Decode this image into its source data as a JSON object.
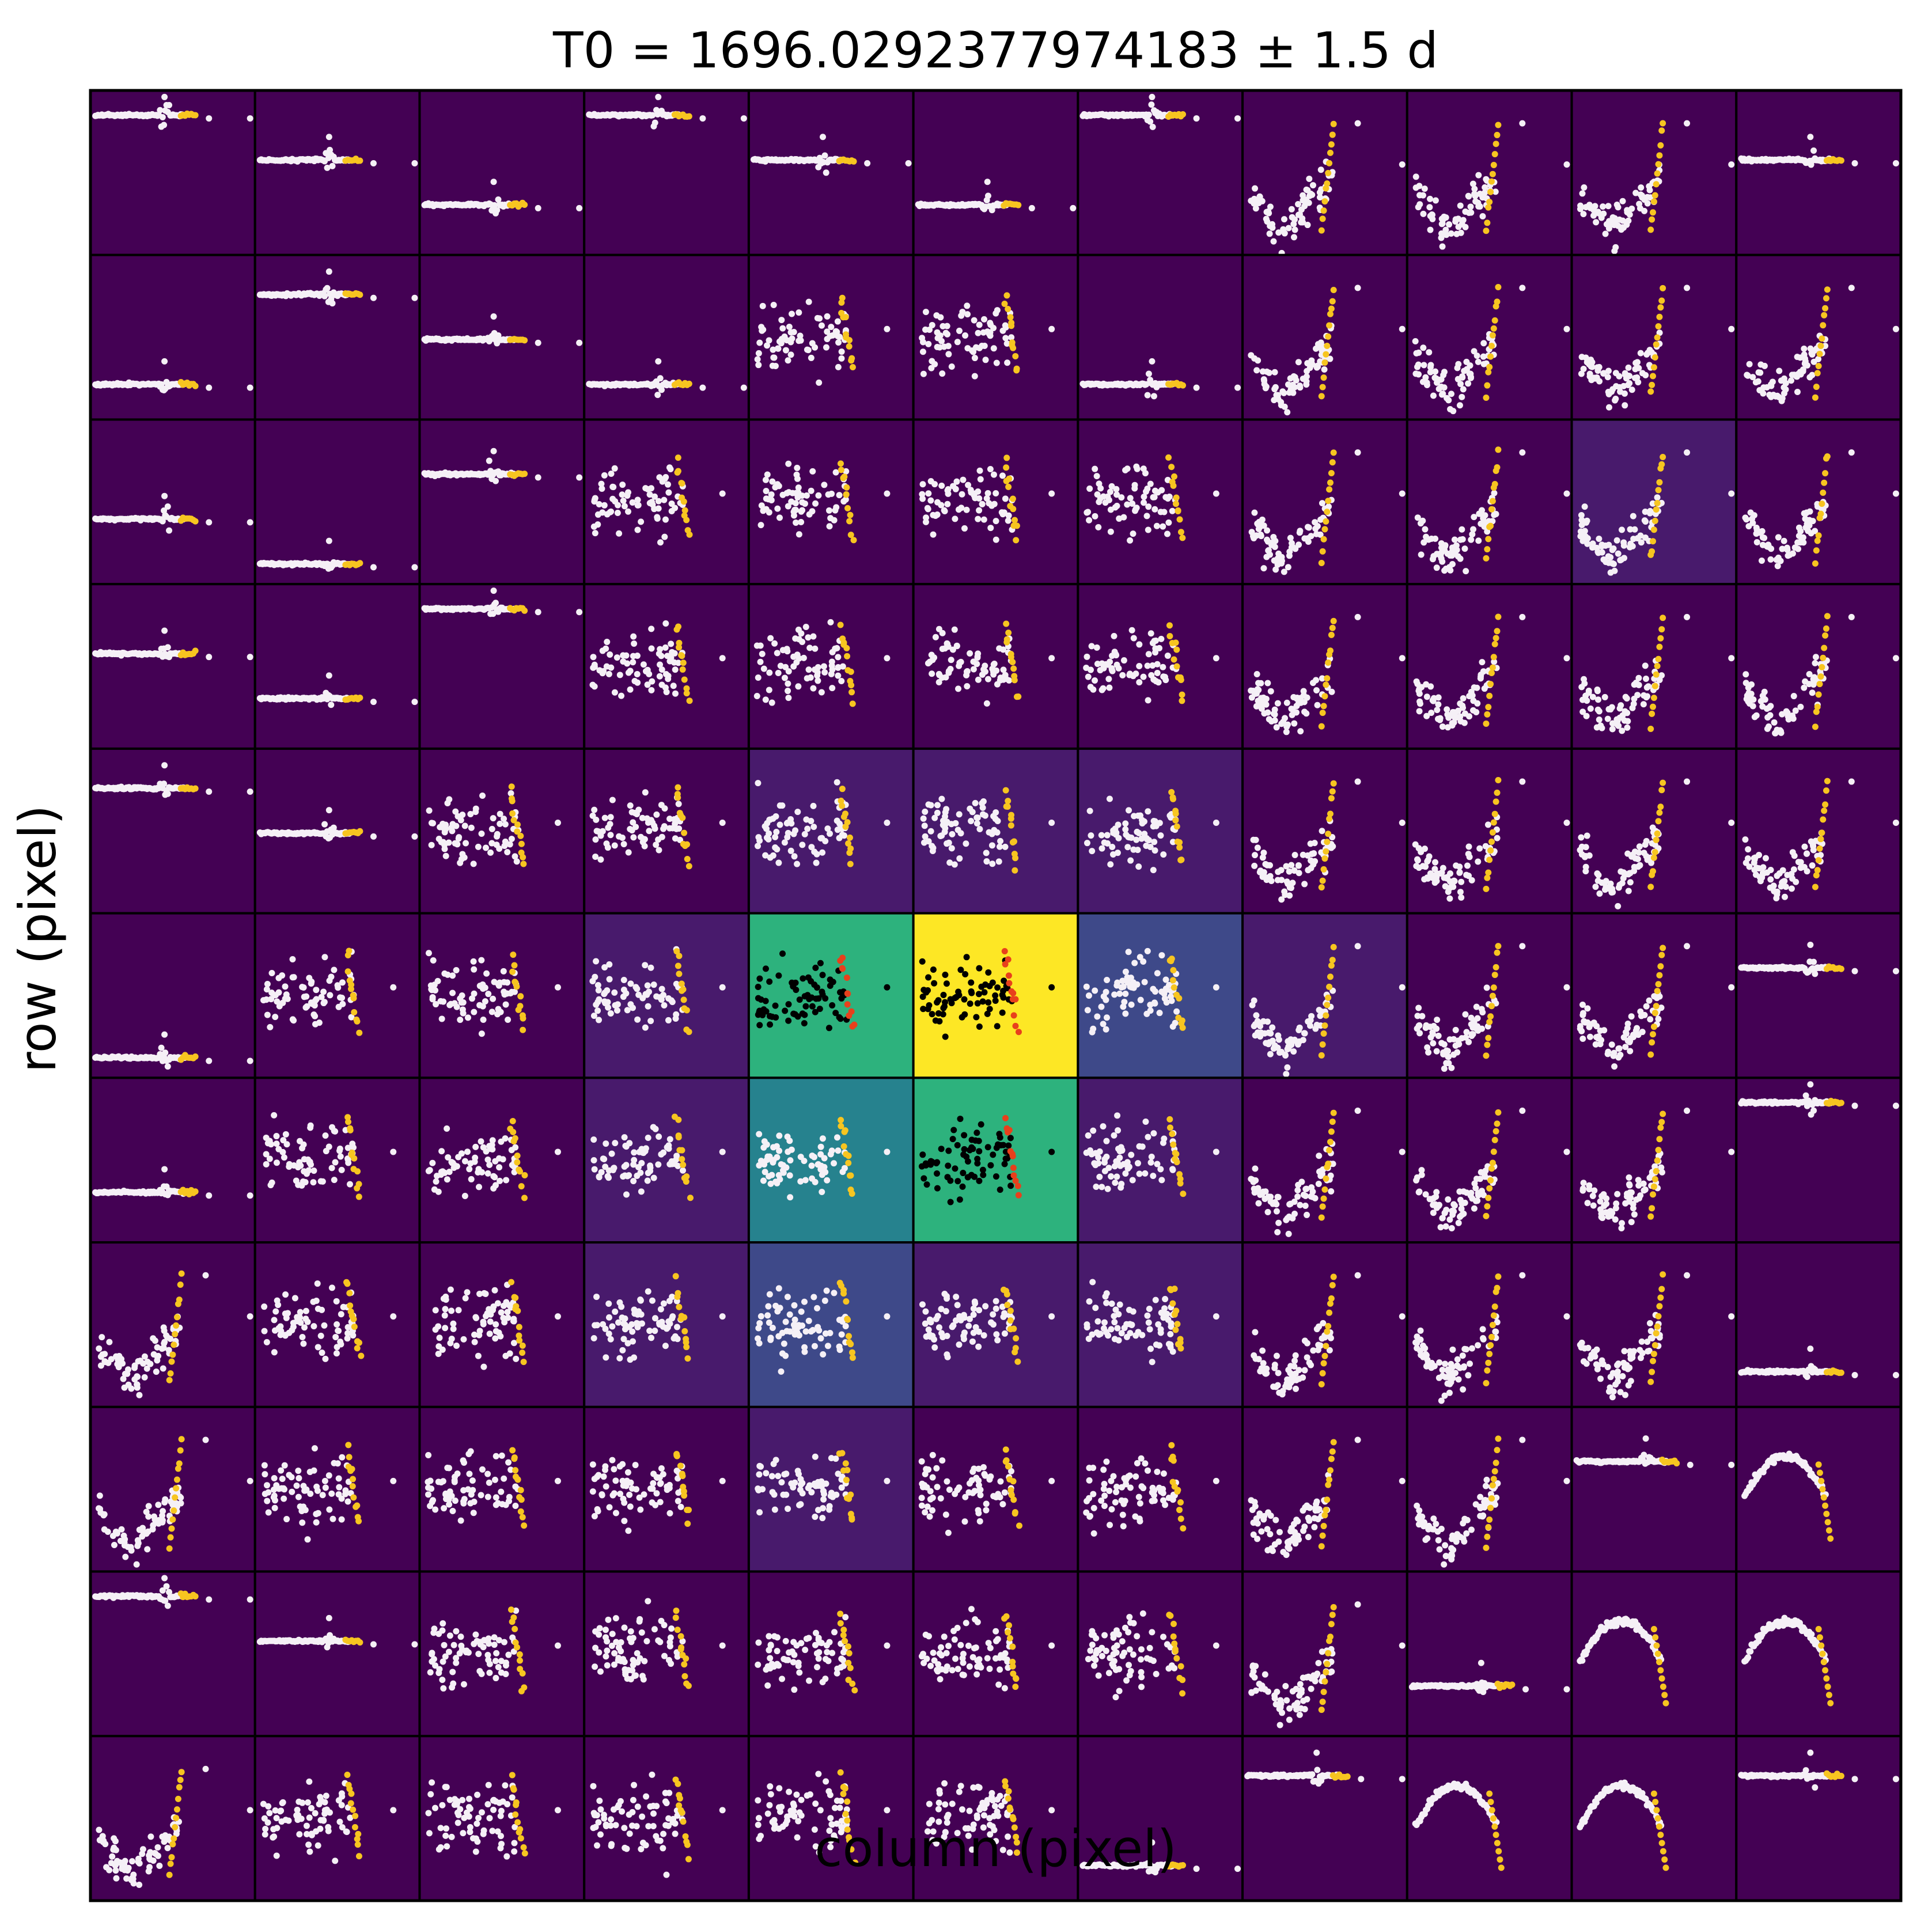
{
  "chart_data": {
    "type": "pixel-grid",
    "title": "T0 = 1696.0292377974183 ± 1.5 d",
    "xlabel": "column (pixel)",
    "ylabel": "row (pixel)",
    "grid": {
      "rows": 11,
      "columns": 11
    },
    "colormap": [
      "#440154",
      "#481a6c",
      "#3e4989",
      "#26828e",
      "#2db27d",
      "#fde725"
    ],
    "marker_colors": {
      "light_curve": "#f5f0f6",
      "transit_window": "#f7c520",
      "aperture_light_curve": "#000000",
      "aperture_transit_window": "#e8401c"
    },
    "pixel_brightness": [
      [
        0,
        0,
        0,
        0,
        0,
        0,
        0,
        0,
        0,
        0,
        0
      ],
      [
        0,
        0,
        0,
        0,
        0,
        0,
        0,
        0,
        0,
        0,
        0
      ],
      [
        0,
        0,
        0,
        0,
        0,
        0,
        0,
        0,
        0,
        1,
        0
      ],
      [
        0,
        0,
        0,
        0,
        0,
        0,
        0,
        0,
        0,
        0,
        0
      ],
      [
        0,
        0,
        0,
        0,
        1,
        1,
        1,
        0,
        0,
        0,
        0
      ],
      [
        0,
        0,
        0,
        1,
        4,
        5,
        2,
        1,
        0,
        0,
        0
      ],
      [
        0,
        0,
        0,
        1,
        3,
        4,
        1,
        0,
        0,
        0,
        0
      ],
      [
        0,
        0,
        0,
        1,
        2,
        1,
        1,
        0,
        0,
        0,
        0
      ],
      [
        0,
        0,
        0,
        0,
        1,
        0,
        0,
        0,
        0,
        0,
        0
      ],
      [
        0,
        0,
        0,
        0,
        0,
        0,
        0,
        0,
        0,
        0,
        0
      ],
      [
        0,
        0,
        0,
        0,
        0,
        0,
        0,
        0,
        0,
        0,
        0
      ]
    ],
    "pattern": [
      [
        "F",
        "F",
        "F",
        "F",
        "F",
        "F",
        "F",
        "V",
        "V",
        "V",
        "F"
      ],
      [
        "F",
        "F",
        "F",
        "F",
        "N",
        "N",
        "F",
        "V",
        "V",
        "V",
        "V"
      ],
      [
        "F",
        "F",
        "F",
        "N",
        "N",
        "N",
        "N",
        "V",
        "V",
        "V",
        "V"
      ],
      [
        "F",
        "F",
        "F",
        "N",
        "N",
        "N",
        "N",
        "V",
        "V",
        "V",
        "V"
      ],
      [
        "F",
        "F",
        "N",
        "N",
        "N",
        "N",
        "N",
        "V",
        "V",
        "V",
        "V"
      ],
      [
        "F",
        "N",
        "N",
        "N",
        "N",
        "N",
        "N",
        "V",
        "V",
        "V",
        "F"
      ],
      [
        "F",
        "N",
        "N",
        "N",
        "N",
        "N",
        "N",
        "V",
        "V",
        "V",
        "F"
      ],
      [
        "V",
        "N",
        "N",
        "N",
        "N",
        "N",
        "N",
        "V",
        "V",
        "V",
        "F"
      ],
      [
        "V",
        "N",
        "N",
        "N",
        "N",
        "N",
        "N",
        "V",
        "V",
        "F",
        "U"
      ],
      [
        "F",
        "F",
        "N",
        "N",
        "N",
        "N",
        "N",
        "V",
        "F",
        "U",
        "U"
      ],
      [
        "V",
        "N",
        "N",
        "N",
        "N",
        "N",
        "F",
        "F",
        "U",
        "U",
        "F"
      ]
    ],
    "aperture_pixels": [
      [
        5,
        4
      ],
      [
        5,
        5
      ],
      [
        6,
        5
      ]
    ],
    "ticks_shown": false
  }
}
